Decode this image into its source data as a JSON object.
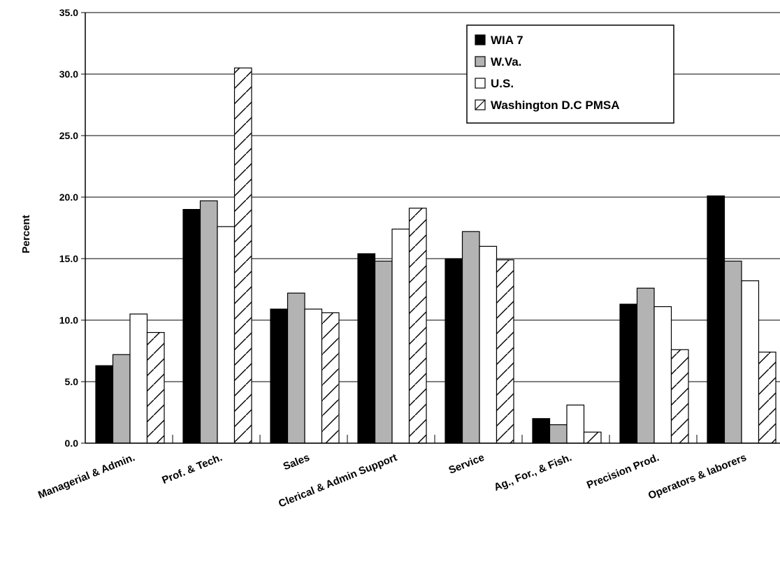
{
  "chart_data": {
    "type": "bar",
    "title": "",
    "xlabel": "",
    "ylabel": "Percent",
    "ylim": [
      0,
      35
    ],
    "yticks": [
      "0.0",
      "5.0",
      "10.0",
      "15.0",
      "20.0",
      "25.0",
      "30.0",
      "35.0"
    ],
    "grid": true,
    "legend_position": "top-right",
    "categories": [
      "Managerial & Admin.",
      "Prof. & Tech.",
      "Sales",
      "Clerical & Admin Support",
      "Service",
      "Ag., For., & Fish.",
      "Precision Prod.",
      "Operators & laborers"
    ],
    "series": [
      {
        "name": "WIA 7",
        "style": "solid-black",
        "values": [
          6.3,
          19.0,
          10.9,
          15.4,
          15.0,
          2.0,
          11.3,
          20.1
        ]
      },
      {
        "name": "W.Va.",
        "style": "solid-gray",
        "values": [
          7.2,
          19.7,
          12.2,
          14.8,
          17.2,
          1.5,
          12.6,
          14.8
        ]
      },
      {
        "name": "U.S.",
        "style": "white",
        "values": [
          10.5,
          17.6,
          10.9,
          17.4,
          16.0,
          3.1,
          11.1,
          13.2
        ]
      },
      {
        "name": "Washington D.C PMSA",
        "style": "hatched",
        "values": [
          9.0,
          30.5,
          10.6,
          19.1,
          14.9,
          0.9,
          7.6,
          7.4
        ]
      }
    ],
    "colors": {
      "WIA 7": "#000000",
      "W.Va.": "#b3b3b3",
      "U.S.": "#ffffff",
      "Washington D.C PMSA": "#ffffff"
    }
  }
}
